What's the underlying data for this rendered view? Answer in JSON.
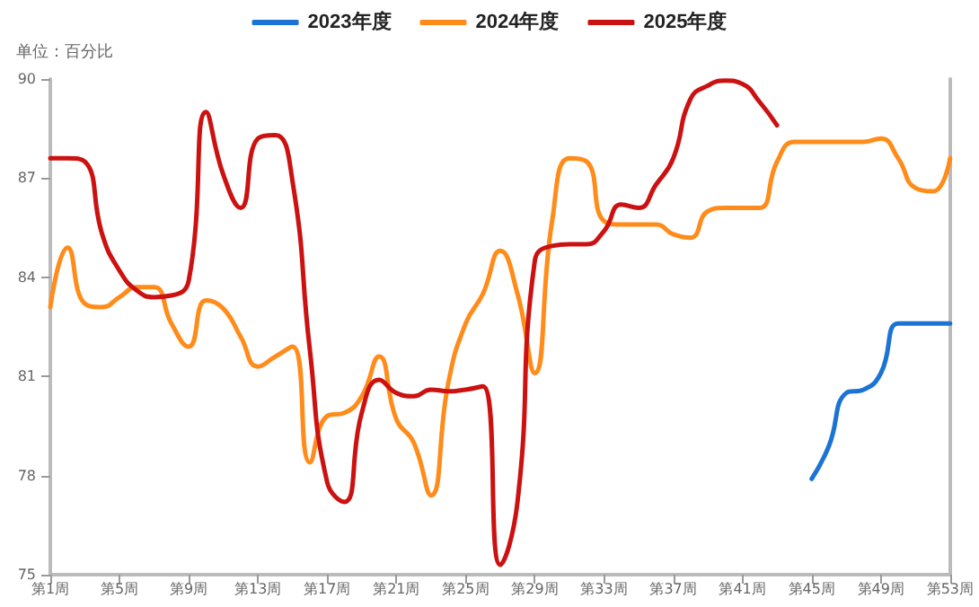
{
  "chart_data": {
    "type": "line",
    "ylabel": "单位：百分比",
    "categories": [
      "第1周",
      null,
      null,
      null,
      "第5周",
      null,
      null,
      null,
      "第9周",
      null,
      null,
      null,
      "第13周",
      null,
      null,
      null,
      "第17周",
      null,
      null,
      null,
      "第21周",
      null,
      null,
      null,
      "第25周",
      null,
      null,
      null,
      "第29周",
      null,
      null,
      null,
      "第33周",
      null,
      null,
      null,
      "第37周",
      null,
      null,
      null,
      "第41周",
      null,
      null,
      null,
      "第45周",
      null,
      null,
      null,
      "第49周",
      null,
      null,
      null,
      "第53周"
    ],
    "series": [
      {
        "name": "2023年度",
        "color": "#1b74d3",
        "values": [
          null,
          null,
          null,
          null,
          null,
          null,
          null,
          null,
          null,
          null,
          null,
          null,
          null,
          null,
          null,
          null,
          null,
          null,
          null,
          null,
          null,
          null,
          null,
          null,
          null,
          null,
          null,
          null,
          null,
          null,
          null,
          null,
          null,
          null,
          null,
          null,
          null,
          null,
          null,
          null,
          null,
          null,
          null,
          null,
          77.9,
          78.9,
          80.5,
          80.6,
          81.1,
          82.6,
          82.6,
          82.6,
          82.6
        ]
      },
      {
        "name": "2024年度",
        "color": "#ff8c1a",
        "values": [
          83.1,
          84.9,
          83.2,
          83.1,
          83.4,
          83.7,
          83.7,
          82.6,
          81.9,
          83.3,
          83.05,
          82.2,
          81.3,
          81.6,
          81.9,
          78.4,
          79.8,
          79.9,
          80.4,
          81.6,
          79.7,
          79,
          77.4,
          80.8,
          82.6,
          83.5,
          84.8,
          83.5,
          81.1,
          85.7,
          87.6,
          87.5,
          85.7,
          85.6,
          85.6,
          85.6,
          85.3,
          85.2,
          86,
          86.1,
          86.1,
          86.1,
          87.5,
          88.1,
          88.1,
          88.1,
          88.1,
          88.1,
          88.2,
          87.6,
          86.7,
          86.6,
          87.6
        ]
      },
      {
        "name": "2025年度",
        "color": "#cc1111",
        "values": [
          87.6,
          87.6,
          87.5,
          85.3,
          84.2,
          83.6,
          83.4,
          83.45,
          83.9,
          89,
          87.1,
          86.1,
          88.2,
          88.3,
          86.9,
          81.8,
          77.8,
          77.2,
          79.9,
          80.9,
          80.5,
          80.4,
          80.6,
          80.55,
          80.6,
          80.7,
          75.3,
          77.2,
          84.5,
          84.95,
          85,
          85,
          85.4,
          86.2,
          86.1,
          86.8,
          87.6,
          89.4,
          89.8,
          89.95,
          89.85,
          89.3,
          88.6,
          null,
          null,
          null,
          null,
          null,
          null,
          null,
          null,
          null,
          null
        ]
      }
    ],
    "ylim": [
      75,
      90
    ],
    "yticks": [
      75,
      78,
      81,
      84,
      87,
      90
    ],
    "grid": false,
    "legend": "top",
    "marker": "none",
    "line_style": "solid"
  }
}
